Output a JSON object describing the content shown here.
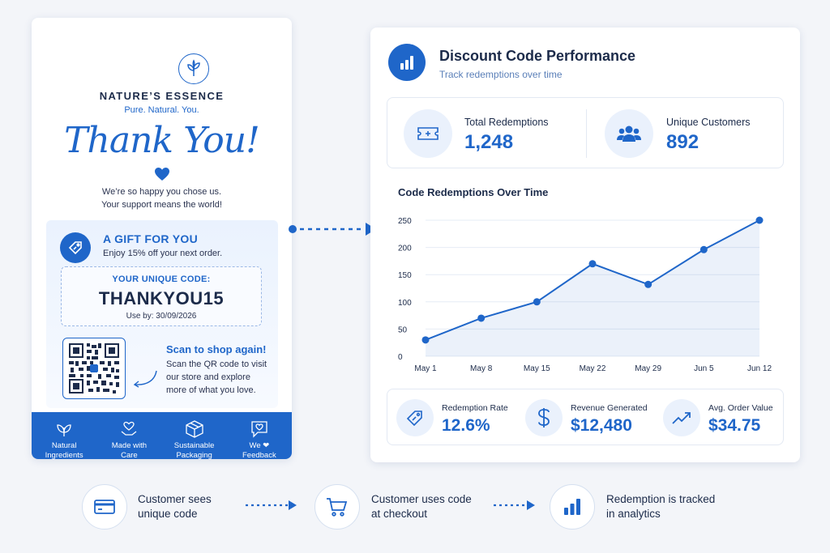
{
  "card": {
    "brand": "NATURE’S ESSENCE",
    "tagline": "Pure. Natural. You.",
    "headline": "Thank You!",
    "message_line1": "We’re so happy you chose us.",
    "message_line2": "Your support means the world!",
    "gift": {
      "title": "A GIFT FOR YOU",
      "subtitle": "Enjoy 15% off your next order.",
      "code_label": "YOUR UNIQUE CODE:",
      "code": "THANKYOU15",
      "use_by": "Use by: 30/09/2026"
    },
    "scan": {
      "title": "Scan to shop again!",
      "text": "Scan the QR code to visit our store and explore more of what you love."
    },
    "features": [
      {
        "line1": "Natural",
        "line2": "Ingredients",
        "icon": "leaf-icon"
      },
      {
        "line1": "Made with",
        "line2": "Care",
        "icon": "hand-heart-icon"
      },
      {
        "line1": "Sustainable",
        "line2": "Packaging",
        "icon": "box-icon"
      },
      {
        "line1": "We ❤",
        "line2": "Feedback",
        "icon": "chat-heart-icon"
      }
    ]
  },
  "dashboard": {
    "title": "Discount Code Performance",
    "subtitle": "Track redemptions over time",
    "stats": [
      {
        "label": "Total Redemptions",
        "value": "1,248",
        "icon": "ticket-icon"
      },
      {
        "label": "Unique Customers",
        "value": "892",
        "icon": "users-icon"
      }
    ],
    "kpis": [
      {
        "label": "Redemption Rate",
        "value": "12.6%",
        "icon": "tag-icon"
      },
      {
        "label": "Revenue Generated",
        "value": "$12,480",
        "icon": "dollar-icon"
      },
      {
        "label": "Avg. Order Value",
        "value": "$34.75",
        "icon": "trend-up-icon"
      }
    ]
  },
  "chart_data": {
    "type": "area",
    "title": "Code Redemptions Over Time",
    "categories": [
      "May 1",
      "May 8",
      "May 15",
      "May 22",
      "May 29",
      "Jun 5",
      "Jun 12"
    ],
    "values": [
      30,
      70,
      100,
      170,
      132,
      196,
      250
    ],
    "yticks": [
      "0",
      "50",
      "100",
      "150",
      "200",
      "250"
    ],
    "ylim": [
      0,
      250
    ],
    "grid": true,
    "color": "#1f66c9"
  },
  "flow": [
    {
      "line1": "Customer sees",
      "line2": "unique code",
      "icon": "card-icon"
    },
    {
      "line1": "Customer uses code",
      "line2": "at checkout",
      "icon": "cart-icon"
    },
    {
      "line1": "Redemption is tracked",
      "line2": "in analytics",
      "icon": "bar-chart-icon"
    }
  ],
  "colors": {
    "accent": "#1f66c9",
    "text": "#1c2b4a",
    "background": "#f3f5f9"
  }
}
